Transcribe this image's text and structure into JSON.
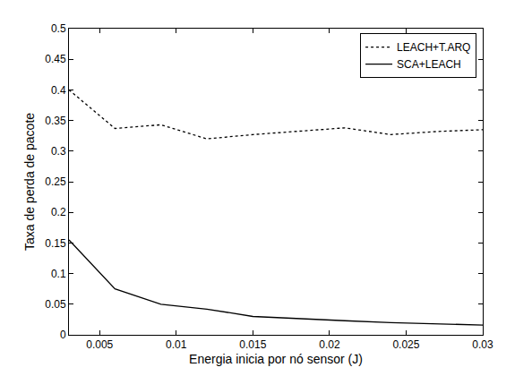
{
  "chart_data": {
    "type": "line",
    "x_label": "Energia inicia por nó sensor (J)",
    "y_label": "Taxa de perda de pacote",
    "x": [
      0.003,
      0.006,
      0.009,
      0.012,
      0.015,
      0.018,
      0.021,
      0.024,
      0.027,
      0.03
    ],
    "series": [
      {
        "name": "LEACH+T.ARQ",
        "color": "#000000",
        "line_style": "dotted",
        "values": [
          0.4,
          0.337,
          0.343,
          0.32,
          0.327,
          0.333,
          0.338,
          0.327,
          0.332,
          0.335
        ]
      },
      {
        "name": "SCA+LEACH",
        "color": "#000000",
        "line_style": "solid",
        "values": [
          0.155,
          0.075,
          0.05,
          0.042,
          0.03,
          0.026,
          0.023,
          0.02,
          0.018,
          0.016
        ]
      }
    ],
    "xlim": [
      0.003,
      0.03
    ],
    "xticks": [
      0.005,
      0.01,
      0.015,
      0.02,
      0.025,
      0.03
    ],
    "ylim": [
      0,
      0.5
    ],
    "yticks": [
      0,
      0.05,
      0.1,
      0.15,
      0.2,
      0.25,
      0.3,
      0.35,
      0.4,
      0.45,
      0.5
    ],
    "grid": false,
    "legend": "upper right"
  }
}
